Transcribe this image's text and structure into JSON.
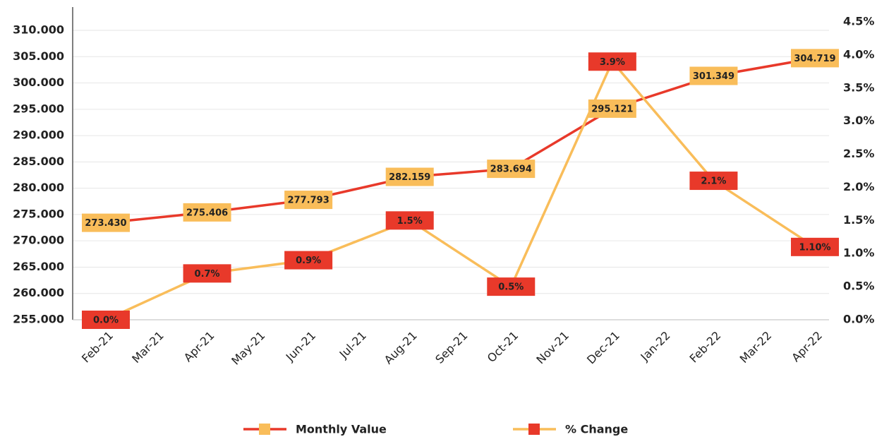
{
  "chart_data": {
    "type": "line",
    "x": [
      "Feb-21",
      "Apr-21",
      "Jun-21",
      "Aug-21",
      "Oct-21",
      "Dec-21",
      "Feb-22",
      "Apr-22"
    ],
    "xticks": [
      "Feb-21",
      "Mar-21",
      "Apr-21",
      "May-21",
      "Jun-21",
      "Jul-21",
      "Aug-21",
      "Sep-21",
      "Oct-21",
      "Nov-21",
      "Dec-21",
      "Jan-22",
      "Feb-22",
      "Mar-22",
      "Apr-22"
    ],
    "series": [
      {
        "name": "Monthly Value",
        "color": "#e8392a",
        "marker_color": "#f9bd5a",
        "values": [
          273430,
          275406,
          277793,
          282159,
          283694,
          295121,
          301349,
          304719
        ],
        "value_labels": [
          "273.430",
          "275.406",
          "277.793",
          "282.159",
          "283.694",
          "295.121",
          "301.349",
          "304.719"
        ]
      },
      {
        "name": "% Change",
        "color": "#f9bd5a",
        "marker_color": "#e8392a",
        "axis": "y2",
        "values": [
          0.0,
          0.7,
          0.9,
          1.5,
          0.5,
          3.9,
          2.1,
          1.1
        ],
        "value_labels": [
          "0.0%",
          "0.7%",
          "0.9%",
          "1.5%",
          "0.5%",
          "3.9%",
          "2.1%",
          "1.10%"
        ]
      }
    ],
    "ylim": [
      255000,
      310000
    ],
    "yticks": [
      {
        "value": 255000,
        "label": "255.000"
      },
      {
        "value": 260000,
        "label": "260.000"
      },
      {
        "value": 265000,
        "label": "265.000"
      },
      {
        "value": 270000,
        "label": "270.000"
      },
      {
        "value": 275000,
        "label": "275.000"
      },
      {
        "value": 280000,
        "label": "280.000"
      },
      {
        "value": 285000,
        "label": "285.000"
      },
      {
        "value": 290000,
        "label": "290.000"
      },
      {
        "value": 295000,
        "label": "295.000"
      },
      {
        "value": 300000,
        "label": "300.000"
      },
      {
        "value": 305000,
        "label": "305.000"
      },
      {
        "value": 310000,
        "label": "310.000"
      }
    ],
    "y2lim": [
      0,
      4.5
    ],
    "y2ticks": [
      {
        "value": 0,
        "label": "0.0%"
      },
      {
        "value": 0.5,
        "label": "0.5%"
      },
      {
        "value": 1,
        "label": "1.0%"
      },
      {
        "value": 1.5,
        "label": "1.5%"
      },
      {
        "value": 2,
        "label": "2.0%"
      },
      {
        "value": 2.5,
        "label": "2.5%"
      },
      {
        "value": 3,
        "label": "3.0%"
      },
      {
        "value": 3.5,
        "label": "3.5%"
      },
      {
        "value": 4,
        "label": "4.0%"
      },
      {
        "value": 4.5,
        "label": "4.5%"
      }
    ],
    "grid": true
  }
}
